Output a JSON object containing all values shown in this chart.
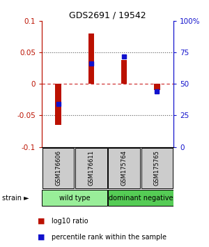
{
  "title": "GDS2691 / 19542",
  "samples": [
    "GSM176606",
    "GSM176611",
    "GSM175764",
    "GSM175765"
  ],
  "log10_ratio": [
    -0.065,
    0.08,
    0.038,
    -0.01
  ],
  "percentile_rank_pct": [
    34,
    66,
    72,
    44
  ],
  "ylim": [
    -0.1,
    0.1
  ],
  "y_left_ticks": [
    -0.1,
    -0.05,
    0,
    0.05,
    0.1
  ],
  "y_left_labels": [
    "-0.1",
    "-0.05",
    "0",
    "0.05",
    "0.1"
  ],
  "y_right_ticks_pct": [
    0,
    25,
    50,
    75,
    100
  ],
  "y_right_labels": [
    "0",
    "25",
    "50",
    "75",
    "100%"
  ],
  "groups": [
    {
      "label": "wild type",
      "samples": [
        0,
        1
      ],
      "color": "#99EE99"
    },
    {
      "label": "dominant negative",
      "samples": [
        2,
        3
      ],
      "color": "#55CC55"
    }
  ],
  "bar_color_red": "#BB1100",
  "bar_color_blue": "#1111CC",
  "zero_line_color": "#CC2222",
  "dotted_line_color": "#555555",
  "sample_box_color": "#CCCCCC",
  "background_color": "#FFFFFF",
  "bar_width": 0.18,
  "blue_marker_size": 4,
  "title_fontsize": 9,
  "tick_fontsize": 7.5,
  "sample_fontsize": 6,
  "group_fontsize": 7,
  "legend_fontsize": 7
}
